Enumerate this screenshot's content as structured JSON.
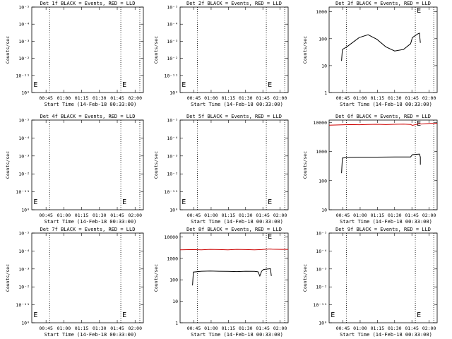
{
  "chart_data": [
    {
      "type": "line",
      "title": "Det 1f BLACK = Events, RED = LLD",
      "ylabel": "Counts/sec",
      "xlabel": "Start Time (14-Feb-18 00:33:00)",
      "x_ticks": [
        "00:45",
        "01:00",
        "01:15",
        "01:30",
        "01:45",
        "02:00"
      ],
      "y_ticks": [
        "10⁰",
        "10⁻¹¹",
        "10⁻²",
        "10⁻³",
        "10⁻⁴",
        "10⁻⁵"
      ],
      "y_scale": "garbage",
      "xlim": [
        33,
        94
      ],
      "markers": [
        {
          "label": "E",
          "x": 34
        },
        {
          "label": "E",
          "x": 79
        }
      ],
      "vlines": [
        37,
        79,
        92
      ],
      "series": []
    },
    {
      "type": "line",
      "title": "Det 2f BLACK = Events, RED = LLD",
      "ylabel": "Counts/sec",
      "xlabel": "Start Time (14-Feb-18 00:33:00)",
      "x_ticks": [
        "00:45",
        "01:00",
        "01:15",
        "01:30",
        "01:45",
        "02:00"
      ],
      "y_ticks": [
        "10⁰",
        "10⁻¹¹",
        "10⁻²",
        "10⁻³",
        "10⁻⁴",
        "10⁻⁵"
      ],
      "y_scale": "garbage",
      "xlim": [
        33,
        94
      ],
      "markers": [
        {
          "label": "E",
          "x": 34
        },
        {
          "label": "E",
          "x": 79
        }
      ],
      "vlines": [
        37,
        79,
        92
      ],
      "series": []
    },
    {
      "type": "line",
      "title": "Det 3f BLACK = Events, RED = LLD",
      "ylabel": "Counts/sec",
      "xlabel": "Start Time (14-Feb-18 00:33:00)",
      "x_ticks": [
        "00:45",
        "01:00",
        "01:15",
        "01:30",
        "01:45",
        "02:00"
      ],
      "y_ticks": [
        "1",
        "10",
        "100",
        "1000"
      ],
      "y_scale": "log",
      "ylim": [
        1,
        1500
      ],
      "xlim": [
        33,
        94
      ],
      "markers": [
        {
          "label": "E",
          "x": 79
        }
      ],
      "vlines": [
        37,
        79,
        92
      ],
      "series": [
        {
          "color": "#000000",
          "x": [
            40,
            40.5,
            43,
            46,
            50,
            55,
            60,
            65,
            70,
            75,
            79,
            80,
            83,
            84,
            84.5
          ],
          "y": [
            15,
            40,
            50,
            70,
            110,
            140,
            95,
            50,
            35,
            40,
            65,
            110,
            150,
            160,
            70
          ]
        }
      ]
    },
    {
      "type": "line",
      "title": "Det 4f BLACK = Events, RED = LLD",
      "ylabel": "Counts/sec",
      "xlabel": "Start Time (14-Feb-18 00:33:00)",
      "x_ticks": [
        "00:45",
        "01:00",
        "01:15",
        "01:30",
        "01:45",
        "02:00"
      ],
      "y_ticks": [
        "10⁰",
        "10⁻¹¹",
        "10⁻²",
        "10⁻³",
        "10⁻⁴",
        "10⁻⁵"
      ],
      "y_scale": "garbage",
      "xlim": [
        33,
        94
      ],
      "markers": [
        {
          "label": "E",
          "x": 34
        },
        {
          "label": "E",
          "x": 79
        }
      ],
      "vlines": [
        37,
        79,
        92
      ],
      "series": []
    },
    {
      "type": "line",
      "title": "Det 5f BLACK = Events, RED = LLD",
      "ylabel": "Counts/sec",
      "xlabel": "Start Time (14-Feb-18 00:33:00)",
      "x_ticks": [
        "00:45",
        "01:00",
        "01:15",
        "01:30",
        "01:45",
        "02:00"
      ],
      "y_ticks": [
        "10⁰",
        "10⁻¹¹",
        "10⁻²",
        "10⁻³",
        "10⁻⁴",
        "10⁻⁵"
      ],
      "y_scale": "garbage",
      "xlim": [
        33,
        94
      ],
      "markers": [
        {
          "label": "E",
          "x": 34
        },
        {
          "label": "E",
          "x": 79
        }
      ],
      "vlines": [
        37,
        79,
        92
      ],
      "series": []
    },
    {
      "type": "line",
      "title": "Det 6f BLACK = Events, RED = LLD",
      "ylabel": "Counts/sec",
      "xlabel": "Start Time (14-Feb-18 00:33:00)",
      "x_ticks": [
        "00:45",
        "01:00",
        "01:15",
        "01:30",
        "01:45",
        "02:00"
      ],
      "y_ticks": [
        "10",
        "100",
        "1000",
        "10000"
      ],
      "y_scale": "log",
      "ylim": [
        10,
        12000
      ],
      "xlim": [
        33,
        94
      ],
      "markers": [
        {
          "label": "E",
          "x": 79
        }
      ],
      "vlines": [
        37,
        79,
        92
      ],
      "series": [
        {
          "color": "#000000",
          "x": [
            40,
            40.5,
            45,
            50,
            55,
            60,
            65,
            70,
            75,
            79,
            80,
            84,
            84.5,
            84.5
          ],
          "y": [
            180,
            600,
            630,
            640,
            640,
            640,
            645,
            650,
            650,
            650,
            780,
            820,
            640,
            350
          ]
        },
        {
          "color": "#cc0000",
          "x": [
            33,
            40,
            45,
            50,
            55,
            60,
            65,
            70,
            75,
            79,
            80,
            84,
            85,
            90,
            94
          ],
          "y": [
            8000,
            8200,
            8400,
            8300,
            8500,
            8600,
            8400,
            8600,
            8700,
            8500,
            7900,
            9000,
            8800,
            9200,
            9300
          ]
        }
      ]
    },
    {
      "type": "line",
      "title": "Det 7f BLACK = Events, RED = LLD",
      "ylabel": "Counts/sec",
      "xlabel": "Start Time (14-Feb-18 00:33:00)",
      "x_ticks": [
        "00:45",
        "01:00",
        "01:15",
        "01:30",
        "01:45",
        "02:00"
      ],
      "y_ticks": [
        "10⁰",
        "10⁻¹¹",
        "10⁻²",
        "10⁻³",
        "10⁻⁴",
        "10⁻⁵"
      ],
      "y_scale": "garbage",
      "xlim": [
        33,
        94
      ],
      "markers": [
        {
          "label": "E",
          "x": 34
        },
        {
          "label": "E",
          "x": 79
        }
      ],
      "vlines": [
        37,
        79,
        92
      ],
      "series": []
    },
    {
      "type": "line",
      "title": "Det 8f BLACK = Events, RED = LLD",
      "ylabel": "Counts/sec",
      "xlabel": "Start Time (14-Feb-18 00:33:00)",
      "x_ticks": [
        "00:45",
        "01:00",
        "01:15",
        "01:30",
        "01:45",
        "02:00"
      ],
      "y_ticks": [
        "1",
        "10",
        "100",
        "1000",
        "10000"
      ],
      "y_scale": "log",
      "ylim": [
        1,
        15000
      ],
      "xlim": [
        33,
        94
      ],
      "markers": [
        {
          "label": "E",
          "x": 79
        }
      ],
      "vlines": [
        37,
        79,
        92
      ],
      "series": [
        {
          "color": "#000000",
          "x": [
            40,
            40.5,
            45,
            50,
            55,
            60,
            65,
            70,
            75,
            77,
            78,
            79,
            80,
            81,
            83,
            84,
            84.5
          ],
          "y": [
            55,
            230,
            250,
            255,
            250,
            245,
            240,
            250,
            245,
            235,
            150,
            250,
            300,
            310,
            320,
            330,
            150
          ]
        },
        {
          "color": "#cc0000",
          "x": [
            33,
            40,
            45,
            50,
            55,
            60,
            65,
            70,
            75,
            79,
            80,
            84,
            85,
            90,
            94
          ],
          "y": [
            2500,
            2550,
            2500,
            2600,
            2550,
            2500,
            2600,
            2550,
            2500,
            2550,
            2600,
            2700,
            2650,
            2600,
            2600
          ]
        }
      ]
    },
    {
      "type": "line",
      "title": "Det 9f BLACK = Events, RED = LLD",
      "ylabel": "Counts/sec",
      "xlabel": "Start Time (14-Feb-18 00:33:00)",
      "x_ticks": [
        "00:45",
        "01:00",
        "01:15",
        "01:30",
        "01:45",
        "02:00"
      ],
      "y_ticks": [
        "10⁰",
        "10⁻¹¹",
        "10⁻²",
        "10⁻³",
        "10⁻⁴",
        "10⁻⁵"
      ],
      "y_scale": "garbage",
      "xlim": [
        33,
        94
      ],
      "markers": [
        {
          "label": "E",
          "x": 34
        },
        {
          "label": "E",
          "x": 79
        }
      ],
      "vlines": [
        37,
        79,
        92
      ],
      "series": []
    }
  ]
}
